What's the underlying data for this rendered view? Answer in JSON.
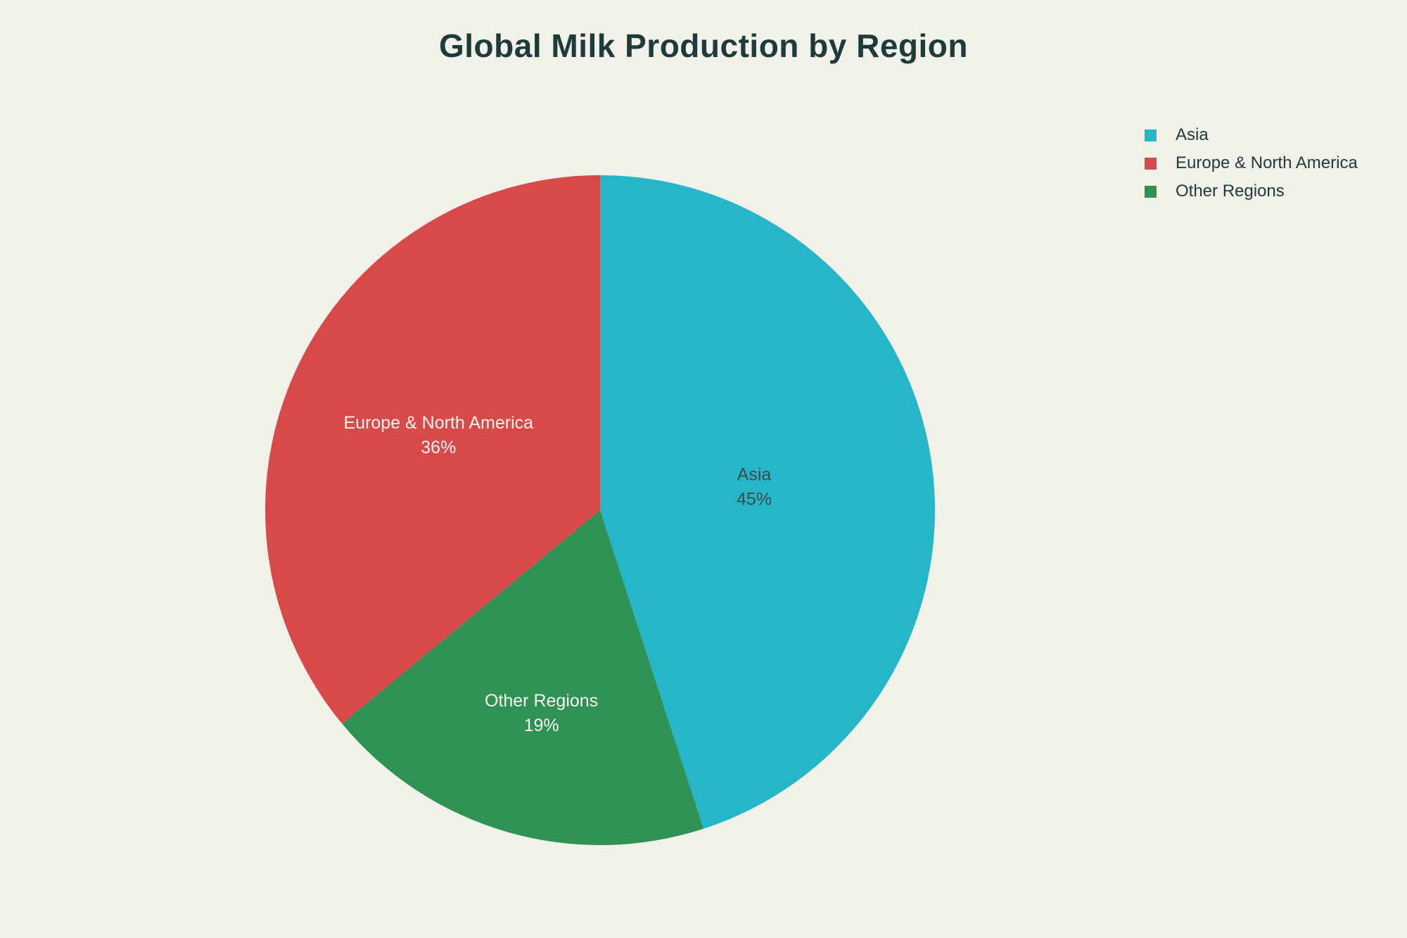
{
  "chart_data": {
    "type": "pie",
    "title": "Global Milk Production by Region",
    "slices": [
      {
        "label": "Asia",
        "value": 45,
        "pct_label": "45%",
        "color": "#25b6c9",
        "label_color": "#3d4a4c"
      },
      {
        "label": "Europe & North America",
        "value": 36,
        "pct_label": "36%",
        "color": "#d8494a",
        "label_color": "#f6f5f0"
      },
      {
        "label": "Other Regions",
        "value": 19,
        "pct_label": "19%",
        "color": "#2f9254",
        "label_color": "#f6f5f0"
      }
    ],
    "labels_inside": true,
    "legend_position": "top-right",
    "background_color": "#f1f0e9",
    "title_color": "#1e3b3b",
    "legend_text_color": "#1e3b3b"
  }
}
